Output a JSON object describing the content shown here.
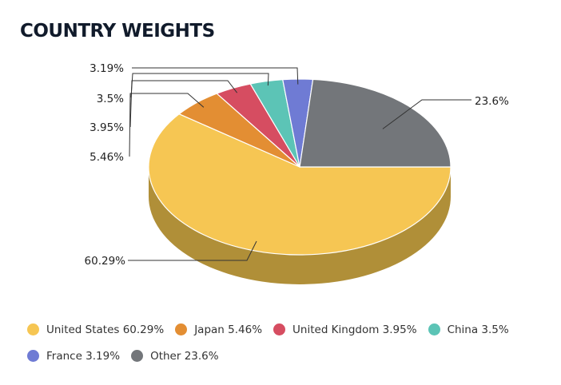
{
  "title": "COUNTRY WEIGHTS",
  "chart_data": {
    "type": "pie",
    "variant": "3d",
    "title": "COUNTRY WEIGHTS",
    "legend_position": "bottom-left",
    "slices": [
      {
        "name": "United States",
        "value": 60.29,
        "label": "60.29%",
        "legend": "United States 60.29%",
        "color": "#f6c653",
        "side_color": "#b08f38"
      },
      {
        "name": "Japan",
        "value": 5.46,
        "label": "5.46%",
        "legend": "Japan 5.46%",
        "color": "#e38e33",
        "side_color": "#a86a26"
      },
      {
        "name": "United Kingdom",
        "value": 3.95,
        "label": "3.95%",
        "legend": "United Kingdom 3.95%",
        "color": "#d64d61",
        "side_color": "#9c3847"
      },
      {
        "name": "China",
        "value": 3.5,
        "label": "3.5%",
        "legend": "China 3.5%",
        "color": "#5cc4b6",
        "side_color": "#43907f"
      },
      {
        "name": "France",
        "value": 3.19,
        "label": "3.19%",
        "legend": "France 3.19%",
        "color": "#6f7bd4",
        "side_color": "#515a9b"
      },
      {
        "name": "Other",
        "value": 23.6,
        "label": "23.6%",
        "legend": "Other 23.6%",
        "color": "#73767a",
        "side_color": "#54575a"
      }
    ]
  }
}
